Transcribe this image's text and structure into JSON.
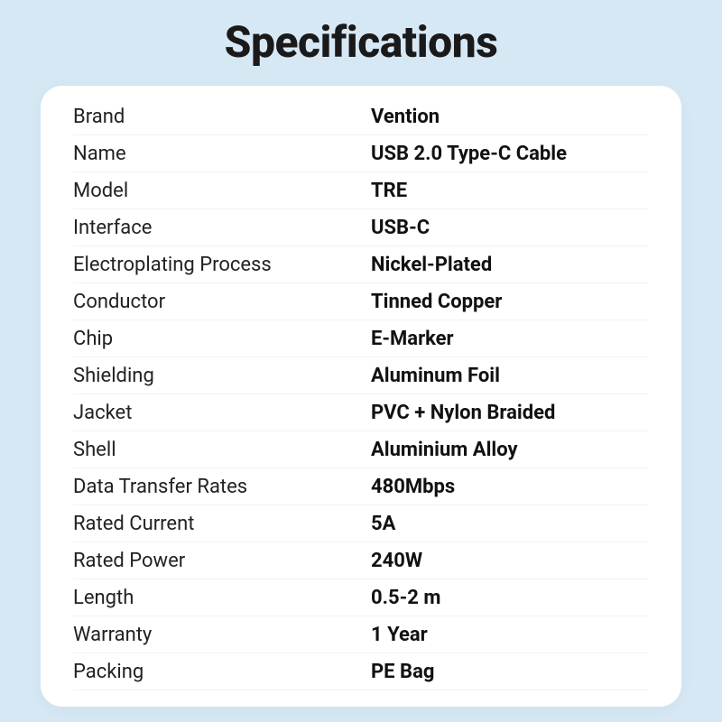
{
  "title": "Specifications",
  "background_color": "#d7e8f5",
  "card_background": "#ffffff",
  "divider_color": "#eef4f9",
  "title_color": "#1a1a1a",
  "label_color": "#222222",
  "value_color": "#111111",
  "title_fontsize": 48,
  "row_fontsize": 22,
  "rows": [
    {
      "label": "Brand",
      "value": "Vention"
    },
    {
      "label": "Name",
      "value": "USB 2.0 Type-C Cable"
    },
    {
      "label": "Model",
      "value": "TRE"
    },
    {
      "label": "Interface",
      "value": "USB-C"
    },
    {
      "label": "Electroplating Process",
      "value": "Nickel-Plated"
    },
    {
      "label": "Conductor",
      "value": "Tinned Copper"
    },
    {
      "label": "Chip",
      "value": "E-Marker"
    },
    {
      "label": "Shielding",
      "value": "Aluminum Foil"
    },
    {
      "label": "Jacket",
      "value": "PVC + Nylon Braided"
    },
    {
      "label": "Shell",
      "value": "Aluminium Alloy"
    },
    {
      "label": "Data Transfer Rates",
      "value": "480Mbps"
    },
    {
      "label": "Rated Current",
      "value": "5A"
    },
    {
      "label": "Rated Power",
      "value": "240W"
    },
    {
      "label": "Length",
      "value": "0.5-2 m"
    },
    {
      "label": "Warranty",
      "value": "1 Year"
    },
    {
      "label": "Packing",
      "value": "PE Bag"
    }
  ]
}
